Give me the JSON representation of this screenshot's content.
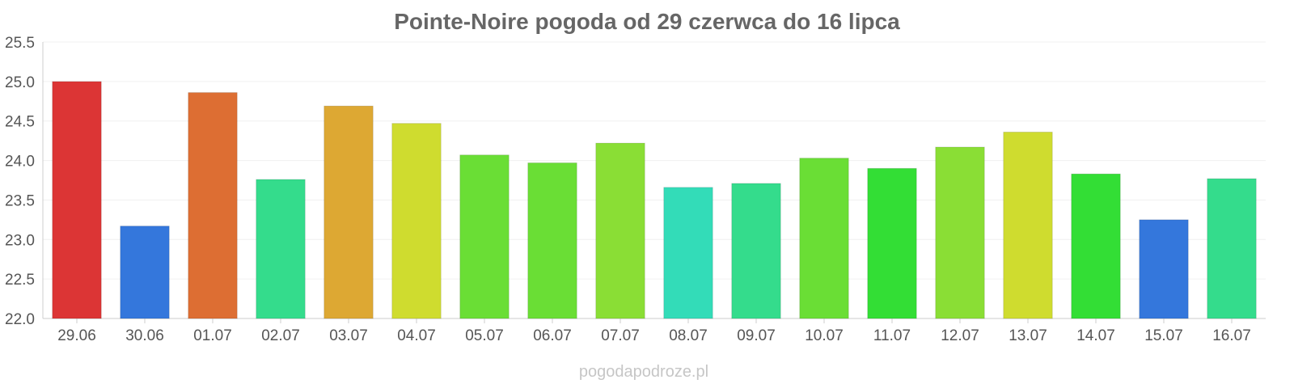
{
  "chart_data": {
    "type": "bar",
    "title": "Pointe-Noire pogoda od 29 czerwca do 16 lipca",
    "xlabel": "",
    "ylabel": "",
    "categories": [
      "29.06",
      "30.06",
      "01.07",
      "02.07",
      "03.07",
      "04.07",
      "05.07",
      "06.07",
      "07.07",
      "08.07",
      "09.07",
      "10.07",
      "11.07",
      "12.07",
      "13.07",
      "14.07",
      "15.07",
      "16.07"
    ],
    "values": [
      25.0,
      23.17,
      24.86,
      23.76,
      24.69,
      24.47,
      24.07,
      23.97,
      24.22,
      23.66,
      23.71,
      24.03,
      23.9,
      24.17,
      24.36,
      23.83,
      23.25,
      23.77
    ],
    "colors": [
      "#dc3535",
      "#3477dc",
      "#dd6e33",
      "#34dc8c",
      "#dda833",
      "#cfdc2f",
      "#6ade35",
      "#6ade35",
      "#8ade35",
      "#33dcb8",
      "#34dc8c",
      "#6ade35",
      "#33de35",
      "#8ade35",
      "#cfdc2f",
      "#33de35",
      "#3477dc",
      "#34dc8c"
    ],
    "ylim": [
      22.0,
      25.5
    ],
    "yticks": [
      "22.0",
      "22.5",
      "23.0",
      "23.5",
      "24.0",
      "24.5",
      "25.0",
      "25.5"
    ],
    "grid": true,
    "legend": "none"
  },
  "watermark": "pogodapodroze.pl"
}
